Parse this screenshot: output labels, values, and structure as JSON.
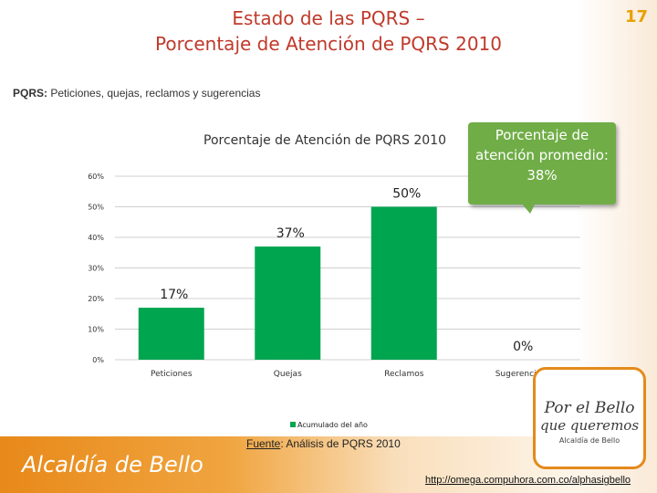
{
  "header": {
    "title_line1": "Estado de las PQRS –",
    "title_line2": "Porcentaje de Atención de PQRS 2010",
    "page_number": "17"
  },
  "note": {
    "label": "PQRS:",
    "text": " Peticiones, quejas, reclamos y sugerencias"
  },
  "callout": {
    "text": "Porcentaje de atención promedio: 38%"
  },
  "source": {
    "label": "Fuente",
    "text": ": Análisis de PQRS 2010"
  },
  "footer": {
    "brand": "Alcaldía de Bello",
    "url": "http://omega.compuhora.com.co/alphasigbello"
  },
  "logo": {
    "line1": "Por el Bello",
    "line2": "que queremos",
    "line3": "Alcaldía de Bello"
  },
  "colors": {
    "bar": "#00a550",
    "title": "#c0392b",
    "callout": "#70ad47",
    "accent": "#e8891a"
  },
  "chart_data": {
    "type": "bar",
    "title": "Porcentaje de Atención de PQRS 2010",
    "categories": [
      "Peticiones",
      "Quejas",
      "Reclamos",
      "Sugerencias"
    ],
    "series": [
      {
        "name": "Acumulado del año",
        "values": [
          17,
          37,
          50,
          0
        ]
      }
    ],
    "data_labels": [
      "17%",
      "37%",
      "50%",
      "0%"
    ],
    "yticks": [
      0,
      10,
      20,
      30,
      40,
      50,
      60
    ],
    "ytick_labels": [
      "0%",
      "10%",
      "20%",
      "30%",
      "40%",
      "50%",
      "60%"
    ],
    "ylim": [
      0,
      60
    ],
    "legend_position": "bottom"
  }
}
